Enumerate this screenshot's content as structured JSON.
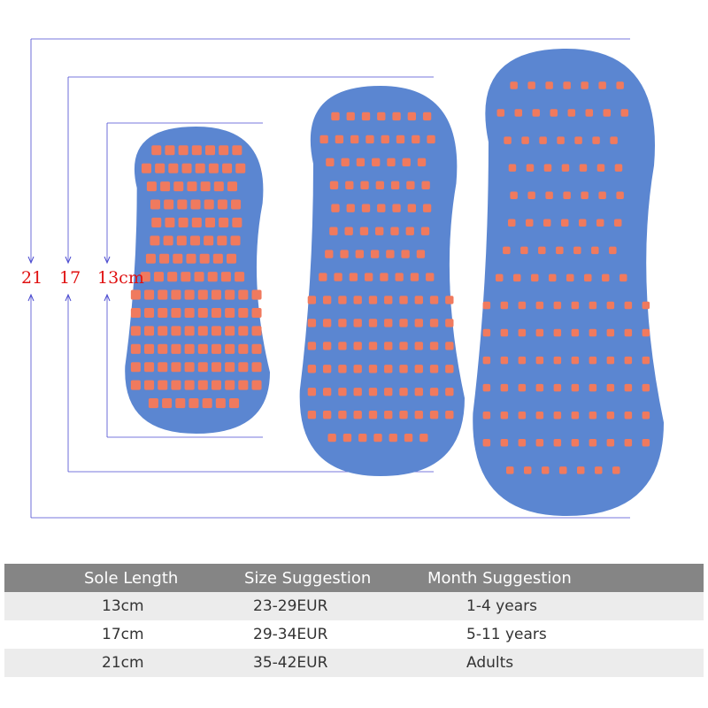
{
  "dimension_labels": {
    "large": "21",
    "medium": "17",
    "small": "13cm"
  },
  "colors": {
    "sock": "#5b86d1",
    "grip": "#f07a5e",
    "line": "#4a4ad0",
    "label": "#e01010",
    "header_bg": "#858585",
    "row_alt": "#ececec"
  },
  "table": {
    "headers": [
      "Sole Length",
      "Size Suggestion",
      "Month Suggestion"
    ],
    "rows": [
      [
        "13cm",
        "23-29EUR",
        "1-4 years"
      ],
      [
        "17cm",
        "29-34EUR",
        "5-11 years"
      ],
      [
        "21cm",
        "35-42EUR",
        "Adults"
      ]
    ]
  }
}
